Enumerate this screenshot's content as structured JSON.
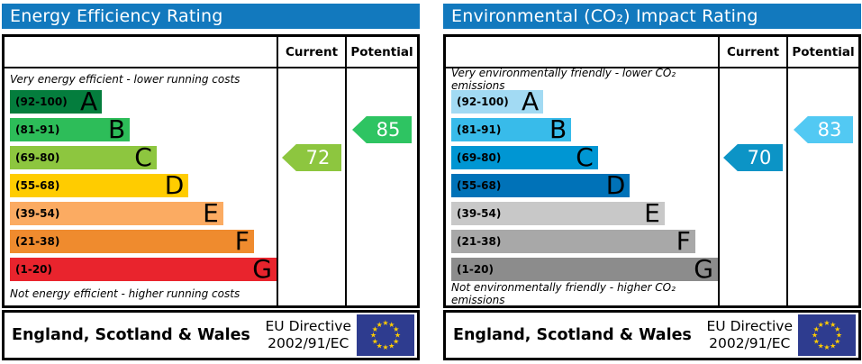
{
  "chart_data": [
    {
      "type": "bar",
      "title": "Energy Efficiency Rating",
      "top_label": "Very energy efficient - lower running costs",
      "bottom_label": "Not energy efficient - higher running costs",
      "columns": {
        "current": "Current",
        "potential": "Potential"
      },
      "bands": [
        {
          "letter": "A",
          "label": "(92-100)",
          "range": [
            92,
            100
          ],
          "color": "#047d3d",
          "width_pct": 34.5
        },
        {
          "letter": "B",
          "label": "(81-91)",
          "range": [
            81,
            91
          ],
          "color": "#2dbd59",
          "width_pct": 45
        },
        {
          "letter": "C",
          "label": "(69-80)",
          "range": [
            69,
            80
          ],
          "color": "#8dc63f",
          "width_pct": 55
        },
        {
          "letter": "D",
          "label": "(55-68)",
          "range": [
            55,
            68
          ],
          "color": "#ffcc00",
          "width_pct": 67
        },
        {
          "letter": "E",
          "label": "(39-54)",
          "range": [
            39,
            54
          ],
          "color": "#fbab62",
          "width_pct": 80
        },
        {
          "letter": "F",
          "label": "(21-38)",
          "range": [
            21,
            38
          ],
          "color": "#ef8b2e",
          "width_pct": 91.5
        },
        {
          "letter": "G",
          "label": "(1-20)",
          "range": [
            1,
            20
          ],
          "color": "#e9242d",
          "width_pct": 100
        }
      ],
      "current": {
        "value": 72,
        "band": "C",
        "color": "#8dc63f"
      },
      "potential": {
        "value": 85,
        "band": "B",
        "color": "#2ec462"
      },
      "footer": {
        "region": "England, Scotland & Wales",
        "directive_line1": "EU Directive",
        "directive_line2": "2002/91/EC",
        "flag_bg": "#2e3c8f",
        "star_color": "#ffcc00"
      },
      "header_bg": "#1279be"
    },
    {
      "type": "bar",
      "title": "Environmental (CO₂) Impact Rating",
      "top_label": "Very environmentally friendly - lower CO₂ emissions",
      "bottom_label": "Not environmentally friendly - higher CO₂ emissions",
      "columns": {
        "current": "Current",
        "potential": "Potential"
      },
      "bands": [
        {
          "letter": "A",
          "label": "(92-100)",
          "range": [
            92,
            100
          ],
          "color": "#a2daf3",
          "width_pct": 34.5
        },
        {
          "letter": "B",
          "label": "(81-91)",
          "range": [
            81,
            91
          ],
          "color": "#38bbea",
          "width_pct": 45
        },
        {
          "letter": "C",
          "label": "(69-80)",
          "range": [
            69,
            80
          ],
          "color": "#0096d3",
          "width_pct": 55
        },
        {
          "letter": "D",
          "label": "(55-68)",
          "range": [
            55,
            68
          ],
          "color": "#0072b8",
          "width_pct": 67
        },
        {
          "letter": "E",
          "label": "(39-54)",
          "range": [
            39,
            54
          ],
          "color": "#c8c8c8",
          "width_pct": 80
        },
        {
          "letter": "F",
          "label": "(21-38)",
          "range": [
            21,
            38
          ],
          "color": "#a8a8a8",
          "width_pct": 91.5
        },
        {
          "letter": "G",
          "label": "(1-20)",
          "range": [
            1,
            20
          ],
          "color": "#8c8c8c",
          "width_pct": 100
        }
      ],
      "current": {
        "value": 70,
        "band": "C",
        "color": "#0c94c6"
      },
      "potential": {
        "value": 83,
        "band": "B",
        "color": "#52c9f3"
      },
      "footer": {
        "region": "England, Scotland & Wales",
        "directive_line1": "EU Directive",
        "directive_line2": "2002/91/EC",
        "flag_bg": "#2e3c8f",
        "star_color": "#ffcc00"
      },
      "header_bg": "#1279be"
    }
  ]
}
